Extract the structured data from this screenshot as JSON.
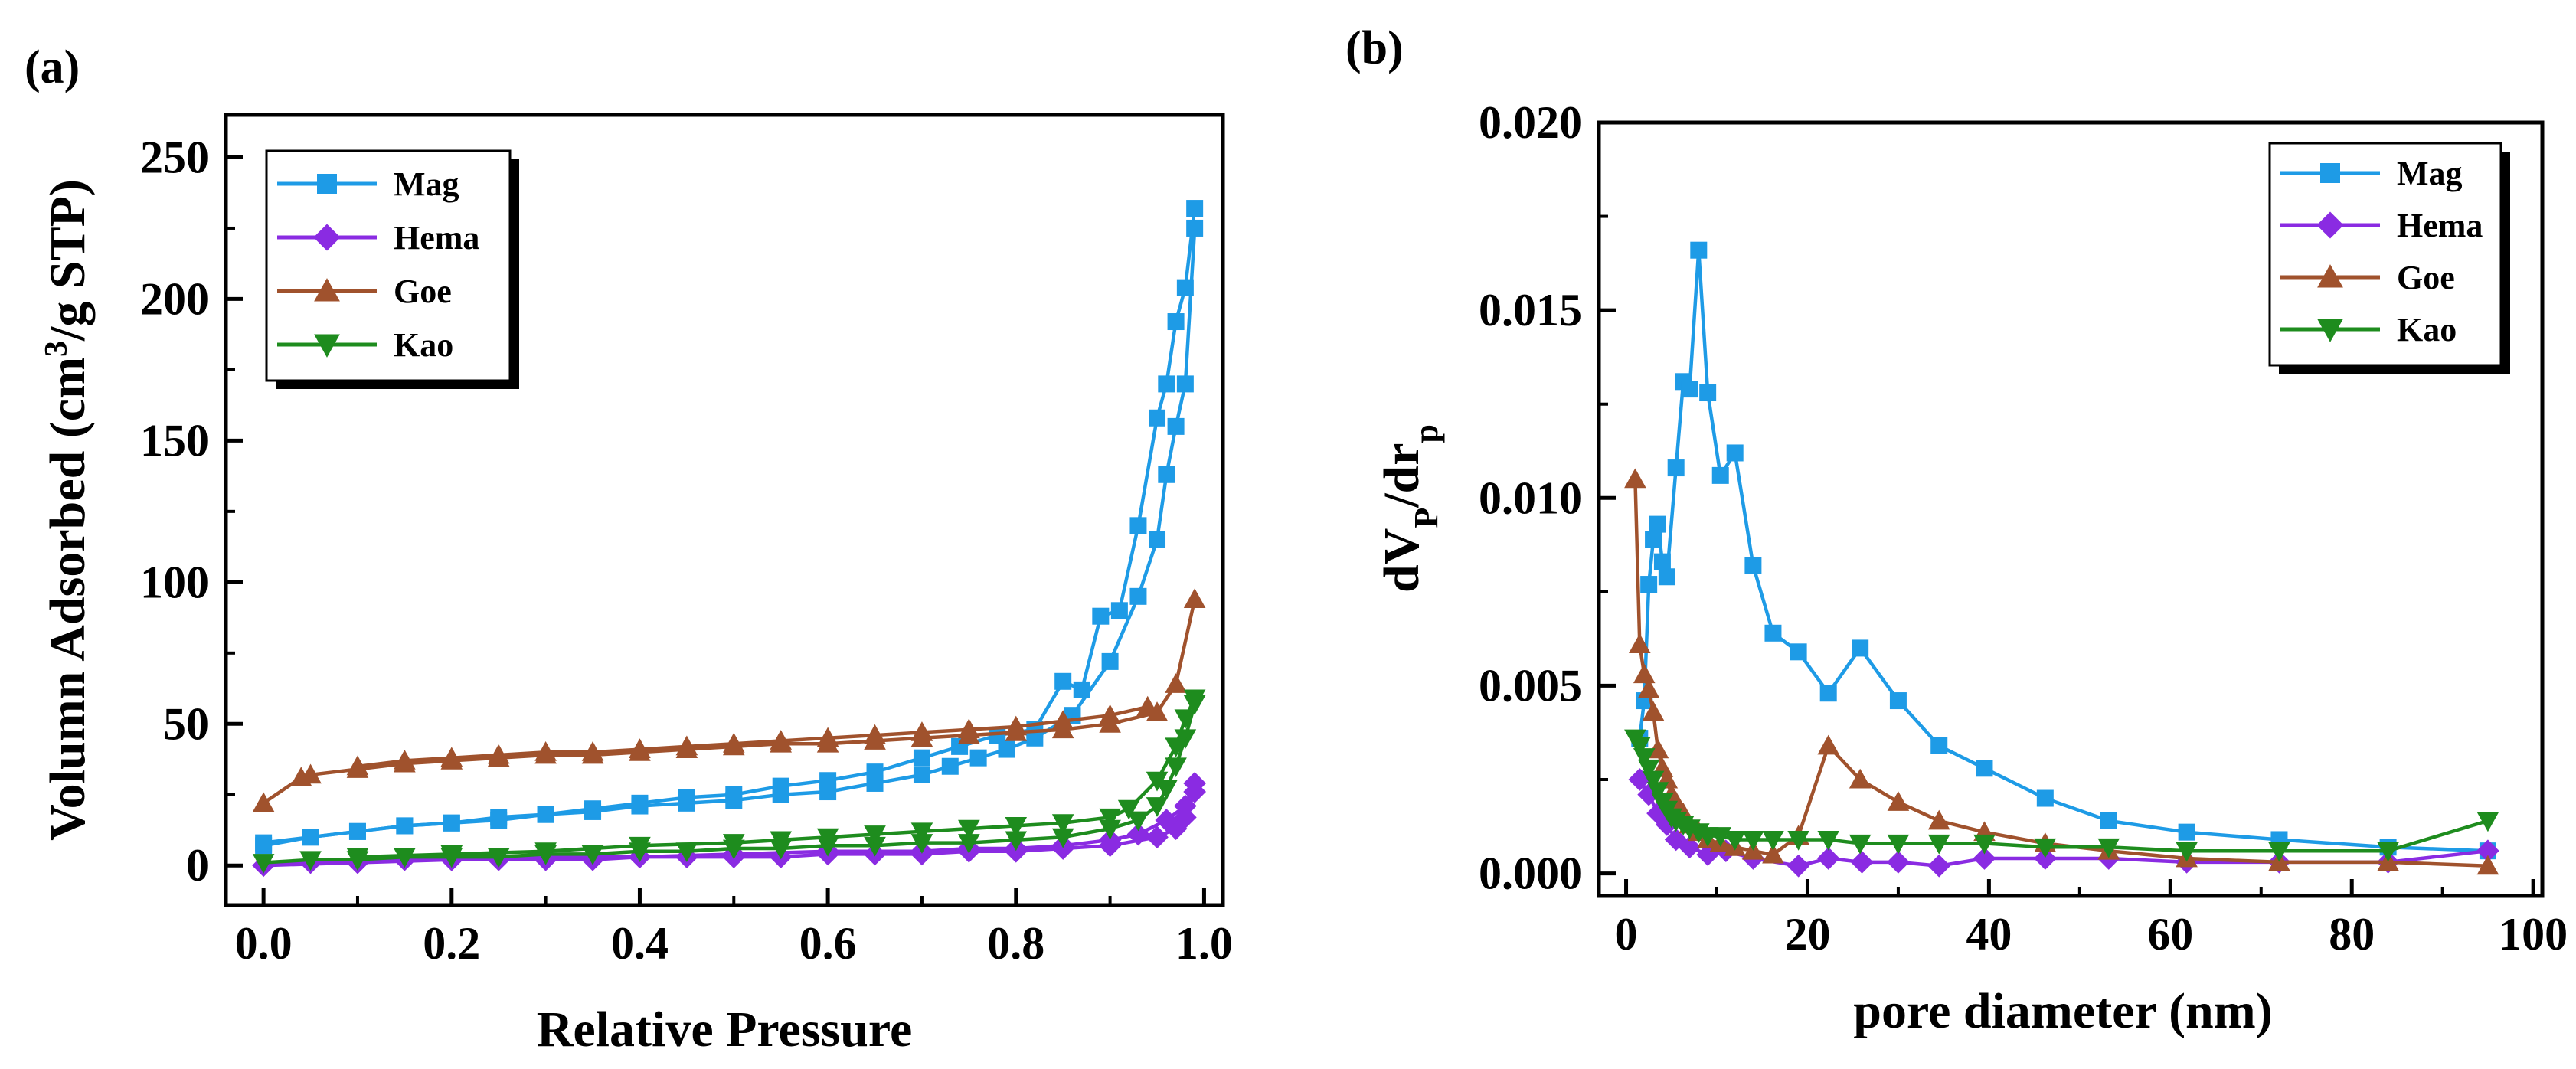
{
  "chart_data": [
    {
      "panel_label": "(a)",
      "type": "line",
      "xlabel": "Relative Pressure",
      "ylabel": "Volumn Adsorbed (cm³/g STP)",
      "ylabel_parts": {
        "main": "Volumn Adsorbed (cm",
        "sup": "3",
        "tail": "/g STP)"
      },
      "xlim": [
        -0.04,
        1.02
      ],
      "ylim": [
        -14,
        265
      ],
      "xticks": [
        0.0,
        0.2,
        0.4,
        0.6,
        0.8,
        1.0
      ],
      "xtick_labels": [
        "0.0",
        "0.2",
        "0.4",
        "0.6",
        "0.8",
        "1.0"
      ],
      "yticks": [
        0,
        50,
        100,
        150,
        200,
        250
      ],
      "ytick_labels": [
        "0",
        "50",
        "100",
        "150",
        "200",
        "250"
      ],
      "legend": {
        "placement": "top-left",
        "entries": [
          "Mag",
          "Hema",
          "Goe",
          "Kao"
        ]
      },
      "series": [
        {
          "name": "Mag",
          "color": "#1E9BE6",
          "marker": "square",
          "adsorption": {
            "x": [
              0.0,
              0.05,
              0.1,
              0.15,
              0.2,
              0.25,
              0.3,
              0.35,
              0.4,
              0.45,
              0.5,
              0.55,
              0.6,
              0.65,
              0.7,
              0.73,
              0.76,
              0.79,
              0.82,
              0.86,
              0.9,
              0.93,
              0.95,
              0.96,
              0.97,
              0.98,
              0.99
            ],
            "y": [
              7,
              10,
              12,
              14,
              15,
              16,
              18,
              19,
              21,
              22,
              23,
              25,
              26,
              29,
              32,
              35,
              38,
              41,
              45,
              53,
              72,
              95,
              115,
              138,
              155,
              170,
              225
            ]
          },
          "desorption": {
            "x": [
              0.99,
              0.98,
              0.97,
              0.96,
              0.95,
              0.93,
              0.91,
              0.89,
              0.87,
              0.85,
              0.82,
              0.78,
              0.74,
              0.7,
              0.65,
              0.6,
              0.55,
              0.5,
              0.45,
              0.4,
              0.35,
              0.3,
              0.25,
              0.2,
              0.15,
              0.1,
              0.05,
              0.0
            ],
            "y": [
              232,
              204,
              192,
              170,
              158,
              120,
              90,
              88,
              62,
              65,
              48,
              46,
              42,
              38,
              33,
              30,
              28,
              25,
              24,
              22,
              20,
              18,
              17,
              15,
              14,
              12,
              10,
              8
            ]
          }
        },
        {
          "name": "Hema",
          "color": "#8A2BE2",
          "marker": "diamond",
          "adsorption": {
            "x": [
              0.0,
              0.05,
              0.1,
              0.15,
              0.2,
              0.25,
              0.3,
              0.35,
              0.4,
              0.45,
              0.5,
              0.55,
              0.6,
              0.65,
              0.7,
              0.75,
              0.8,
              0.85,
              0.9,
              0.95,
              0.97,
              0.98,
              0.99
            ],
            "y": [
              0,
              1,
              1,
              2,
              2,
              2,
              2,
              2,
              3,
              3,
              3,
              3,
              4,
              4,
              4,
              5,
              5,
              6,
              7,
              10,
              13,
              17,
              26
            ]
          },
          "desorption": {
            "x": [
              0.99,
              0.98,
              0.96,
              0.93,
              0.9,
              0.85,
              0.8,
              0.75,
              0.7,
              0.6,
              0.5,
              0.4,
              0.3,
              0.2,
              0.1,
              0.0
            ],
            "y": [
              29,
              21,
              16,
              11,
              9,
              7,
              6,
              6,
              5,
              5,
              4,
              3,
              3,
              2,
              1,
              0
            ]
          }
        },
        {
          "name": "Goe",
          "color": "#A0522D",
          "marker": "triangle-up",
          "adsorption": {
            "x": [
              0.0,
              0.04,
              0.05,
              0.1,
              0.15,
              0.2,
              0.25,
              0.3,
              0.35,
              0.4,
              0.45,
              0.5,
              0.55,
              0.6,
              0.65,
              0.7,
              0.75,
              0.8,
              0.85,
              0.9,
              0.95,
              0.97,
              0.99
            ],
            "y": [
              22,
              31,
              32,
              34,
              36,
              37,
              38,
              39,
              39,
              40,
              41,
              42,
              43,
              43,
              44,
              45,
              46,
              47,
              48,
              50,
              54,
              64,
              94
            ]
          },
          "desorption": {
            "x": [
              0.94,
              0.9,
              0.85,
              0.8,
              0.75,
              0.7,
              0.65,
              0.6,
              0.55,
              0.5,
              0.45,
              0.4,
              0.35,
              0.3,
              0.25,
              0.2,
              0.15,
              0.1
            ],
            "y": [
              56,
              53,
              51,
              49,
              48,
              47,
              46,
              45,
              44,
              43,
              42,
              41,
              40,
              40,
              39,
              38,
              37,
              35
            ]
          }
        },
        {
          "name": "Kao",
          "color": "#1E8C1E",
          "marker": "triangle-down",
          "adsorption": {
            "x": [
              0.0,
              0.05,
              0.1,
              0.15,
              0.2,
              0.25,
              0.3,
              0.35,
              0.4,
              0.45,
              0.5,
              0.55,
              0.6,
              0.65,
              0.7,
              0.75,
              0.8,
              0.85,
              0.9,
              0.93,
              0.95,
              0.96,
              0.97,
              0.98,
              0.99
            ],
            "y": [
              1,
              2,
              2,
              3,
              3,
              3,
              4,
              4,
              5,
              5,
              6,
              6,
              7,
              7,
              8,
              8,
              9,
              10,
              13,
              16,
              21,
              27,
              35,
              45,
              57
            ]
          },
          "desorption": {
            "x": [
              0.99,
              0.98,
              0.97,
              0.95,
              0.92,
              0.9,
              0.85,
              0.8,
              0.75,
              0.7,
              0.65,
              0.6,
              0.55,
              0.5,
              0.4,
              0.3,
              0.2,
              0.1
            ],
            "y": [
              59,
              52,
              42,
              30,
              20,
              17,
              15,
              14,
              13,
              12,
              11,
              10,
              9,
              8,
              7,
              5,
              4,
              3
            ]
          }
        }
      ]
    },
    {
      "panel_label": "(b)",
      "type": "line",
      "xlabel": "pore diameter (nm)",
      "ylabel": "dVP/drp",
      "ylabel_parts": {
        "main": "dV",
        "sub1": "P",
        "mid": "/dr",
        "sub2": "p"
      },
      "xlim": [
        -3,
        101
      ],
      "ylim": [
        -0.0006,
        0.02
      ],
      "xticks": [
        0,
        20,
        40,
        60,
        80,
        100
      ],
      "xtick_labels": [
        "0",
        "20",
        "40",
        "60",
        "80",
        "100"
      ],
      "yticks": [
        0.0,
        0.005,
        0.01,
        0.015,
        0.02
      ],
      "ytick_labels": [
        "0.000",
        "0.005",
        "0.010",
        "0.015",
        "0.020"
      ],
      "legend": {
        "placement": "top-right",
        "entries": [
          "Mag",
          "Hema",
          "Goe",
          "Kao"
        ]
      },
      "series": [
        {
          "name": "Mag",
          "color": "#1E9BE6",
          "marker": "square",
          "x": [
            1.5,
            2.0,
            2.5,
            3.0,
            3.5,
            4.0,
            4.5,
            5.5,
            6.3,
            7.0,
            8.0,
            9.0,
            10.4,
            12.0,
            14.0,
            16.2,
            19.0,
            22.3,
            25.8,
            30.0,
            34.5,
            39.5,
            46.2,
            53.2,
            61.8,
            72.0,
            84.0,
            95.0
          ],
          "y": [
            0.0036,
            0.0046,
            0.0077,
            0.0089,
            0.0093,
            0.0083,
            0.0079,
            0.0108,
            0.0131,
            0.0129,
            0.0166,
            0.0128,
            0.0106,
            0.0112,
            0.0082,
            0.0064,
            0.0059,
            0.0048,
            0.006,
            0.0046,
            0.0034,
            0.0028,
            0.002,
            0.0014,
            0.0011,
            0.0009,
            0.0007,
            0.0006
          ]
        },
        {
          "name": "Hema",
          "color": "#8A2BE2",
          "marker": "diamond",
          "x": [
            1.5,
            2.5,
            3.5,
            4.5,
            5.5,
            7.0,
            9.0,
            11.0,
            14.0,
            19.0,
            22.3,
            26.0,
            30.0,
            34.5,
            39.5,
            46.2,
            53.2,
            61.8,
            72.0,
            84.0,
            95.0
          ],
          "y": [
            0.0025,
            0.0021,
            0.0016,
            0.0013,
            0.0009,
            0.0007,
            0.0005,
            0.0006,
            0.0004,
            0.0002,
            0.0004,
            0.0003,
            0.0003,
            0.0002,
            0.0004,
            0.0004,
            0.0004,
            0.0003,
            0.0003,
            0.0003,
            0.0006
          ]
        },
        {
          "name": "Goe",
          "color": "#A0522D",
          "marker": "triangle-up",
          "x": [
            1.0,
            1.5,
            2.0,
            2.5,
            3.0,
            3.5,
            4.0,
            4.5,
            5.0,
            5.5,
            6.3,
            7.0,
            8.0,
            9.0,
            10.4,
            12.0,
            14.0,
            16.2,
            19.0,
            22.3,
            25.8,
            30.0,
            34.5,
            39.5,
            46.2,
            53.2,
            61.8,
            72.0,
            84.0,
            95.0
          ],
          "y": [
            0.0105,
            0.0061,
            0.0053,
            0.0049,
            0.0043,
            0.0033,
            0.0028,
            0.0025,
            0.0021,
            0.0019,
            0.0016,
            0.0013,
            0.0011,
            0.0009,
            0.0008,
            0.0007,
            0.0006,
            0.0005,
            0.001,
            0.0034,
            0.0025,
            0.0019,
            0.0014,
            0.0011,
            0.0008,
            0.0006,
            0.0004,
            0.0003,
            0.0003,
            0.0002
          ]
        },
        {
          "name": "Kao",
          "color": "#1E8C1E",
          "marker": "triangle-down",
          "x": [
            1.0,
            1.5,
            2.0,
            2.5,
            3.0,
            3.5,
            4.0,
            4.5,
            5.0,
            5.5,
            6.3,
            7.0,
            8.0,
            9.0,
            10.4,
            12.0,
            14.0,
            16.2,
            19.0,
            22.3,
            25.8,
            30.0,
            34.5,
            39.5,
            46.2,
            53.2,
            61.8,
            72.0,
            84.0,
            95.0
          ],
          "y": [
            0.0036,
            0.0034,
            0.0031,
            0.0028,
            0.0025,
            0.0022,
            0.0019,
            0.0017,
            0.0015,
            0.0014,
            0.0013,
            0.0012,
            0.0011,
            0.001,
            0.001,
            0.0009,
            0.0009,
            0.0009,
            0.0009,
            0.0009,
            0.0008,
            0.0008,
            0.0008,
            0.0008,
            0.0007,
            0.0007,
            0.0006,
            0.0006,
            0.0006,
            0.0014
          ]
        }
      ]
    }
  ]
}
